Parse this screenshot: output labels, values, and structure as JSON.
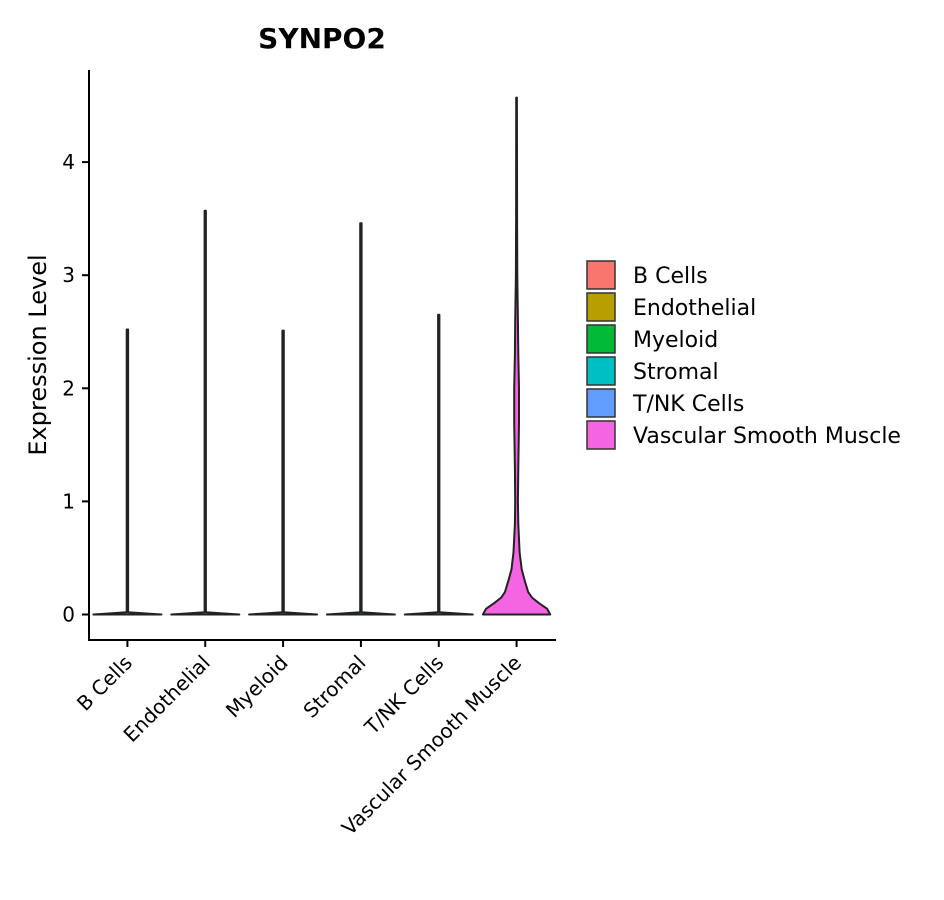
{
  "chart_data": {
    "type": "violin",
    "title": "SYNPO2",
    "xlabel": "",
    "ylabel": "Expression Level",
    "ylim": [
      -0.23,
      4.8
    ],
    "yticks": [
      0,
      1,
      2,
      3,
      4
    ],
    "categories": [
      "B Cells",
      "Endothelial",
      "Myeloid",
      "Stromal",
      "T/NK Cells",
      "Vascular Smooth Muscle"
    ],
    "colors": [
      "#F8766D",
      "#B79F00",
      "#00BA38",
      "#00BFC4",
      "#619CFF",
      "#F564E3"
    ],
    "max_values": [
      2.52,
      3.57,
      2.51,
      3.46,
      2.65,
      4.57
    ],
    "density_profiles": [
      [
        [
          0,
          1.0
        ],
        [
          0.01,
          0.5
        ],
        [
          0.02,
          0.02
        ],
        [
          2.52,
          0.02
        ]
      ],
      [
        [
          0,
          1.0
        ],
        [
          0.01,
          0.5
        ],
        [
          0.02,
          0.02
        ],
        [
          3.57,
          0.02
        ]
      ],
      [
        [
          0,
          1.0
        ],
        [
          0.01,
          0.5
        ],
        [
          0.02,
          0.02
        ],
        [
          2.51,
          0.02
        ]
      ],
      [
        [
          0,
          1.0
        ],
        [
          0.01,
          0.5
        ],
        [
          0.02,
          0.02
        ],
        [
          3.46,
          0.02
        ]
      ],
      [
        [
          0,
          1.0
        ],
        [
          0.01,
          0.5
        ],
        [
          0.02,
          0.02
        ],
        [
          2.65,
          0.02
        ]
      ],
      [
        [
          0,
          0.99
        ],
        [
          0.05,
          0.9
        ],
        [
          0.1,
          0.66
        ],
        [
          0.15,
          0.45
        ],
        [
          0.2,
          0.34
        ],
        [
          0.25,
          0.29
        ],
        [
          0.3,
          0.24
        ],
        [
          0.4,
          0.15
        ],
        [
          0.55,
          0.09
        ],
        [
          0.8,
          0.05
        ],
        [
          1.0,
          0.04
        ],
        [
          1.3,
          0.05
        ],
        [
          1.7,
          0.07
        ],
        [
          2.0,
          0.07
        ],
        [
          2.3,
          0.05
        ],
        [
          2.6,
          0.04
        ],
        [
          3.0,
          0.02
        ],
        [
          3.5,
          0.015
        ],
        [
          4.57,
          0.01
        ]
      ]
    ],
    "legend": {
      "position": "right",
      "entries": [
        "B Cells",
        "Endothelial",
        "Myeloid",
        "Stromal",
        "T/NK Cells",
        "Vascular Smooth Muscle"
      ]
    }
  }
}
